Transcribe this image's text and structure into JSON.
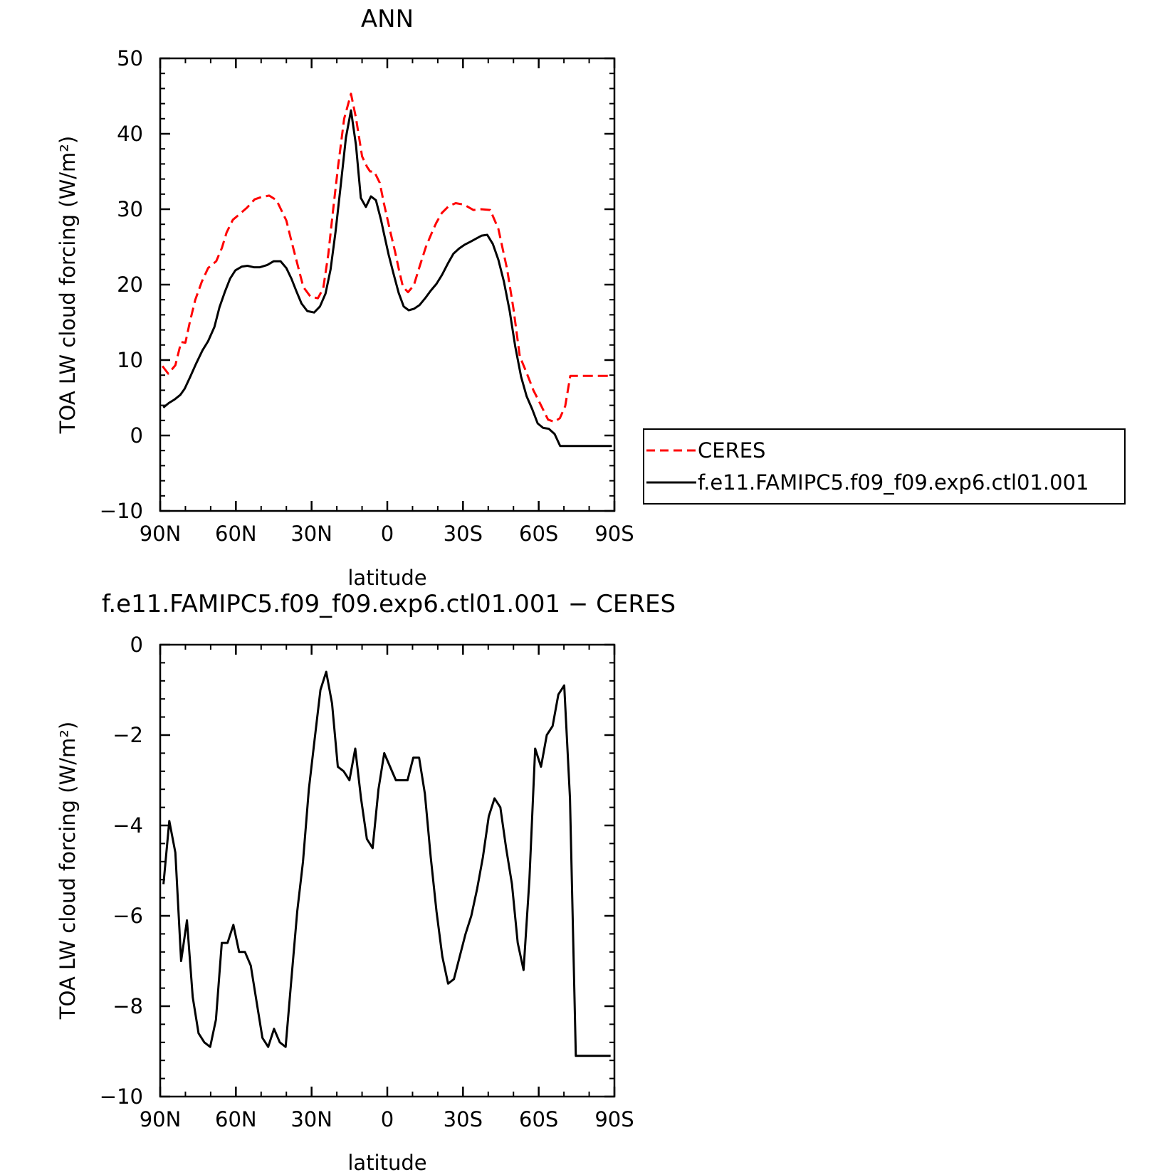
{
  "chart_data": [
    {
      "type": "line",
      "title": "ANN",
      "xlabel": "latitude",
      "ylabel": "TOA LW cloud forcing (W/m²)",
      "ylim": [
        -10,
        50
      ],
      "yticks": [
        -10,
        0,
        10,
        20,
        30,
        40,
        50
      ],
      "xlim": [
        90,
        -90
      ],
      "xticks": [
        90,
        60,
        30,
        0,
        -30,
        -60,
        -90
      ],
      "xtick_labels": [
        "90N",
        "60N",
        "30N",
        "0",
        "30S",
        "60S",
        "90S"
      ],
      "legend_position": "right",
      "series": [
        {
          "name": "CERES",
          "color": "#ff0000",
          "dash": "dashed",
          "x": [
            89.1,
            86.8,
            84.0,
            81.7,
            80.0,
            78.2,
            76.1,
            73.5,
            71.0,
            67.8,
            65.5,
            63.7,
            61.2,
            59.4,
            55.6,
            52.6,
            50.0,
            46.8,
            43.9,
            40.0,
            38.0,
            35.7,
            33.3,
            30.4,
            27.5,
            25.4,
            23.4,
            21.6,
            19.5,
            17.1,
            14.4,
            12.4,
            10.0,
            8.0,
            6.8,
            5.2,
            3.0,
            1.3,
            -1.4,
            -3.0,
            -4.6,
            -6.2,
            -8.2,
            -10.5,
            -12.9,
            -15.3,
            -17.8,
            -19.4,
            -21.6,
            -24.3,
            -27.1,
            -30.4,
            -34.1,
            -37.2,
            -40.8,
            -44.0,
            -47.5,
            -50.0,
            -52.5,
            -55.2,
            -57.9,
            -60.0,
            -63.7,
            -66.2,
            -68.4,
            -70.5,
            -72.5,
            -74.5,
            -77.2,
            -80.0,
            -82.0,
            -84.5,
            -86.2,
            -87.8,
            -89.2
          ],
          "y": [
            9.2,
            8.2,
            9.3,
            12.4,
            12.3,
            15.1,
            18.0,
            20.4,
            22.2,
            23.1,
            24.9,
            26.9,
            28.6,
            29.1,
            30.2,
            31.3,
            31.6,
            31.8,
            31.2,
            28.5,
            25.8,
            22.8,
            19.7,
            18.4,
            18.2,
            19.5,
            24.0,
            29.5,
            35.7,
            42.0,
            45.3,
            42.1,
            37.0,
            35.6,
            35.0,
            35.0,
            33.5,
            30.7,
            26.7,
            24.5,
            22.0,
            19.7,
            19.0,
            19.9,
            22.5,
            25.0,
            27.0,
            28.2,
            29.5,
            30.4,
            30.8,
            30.6,
            29.9,
            30.0,
            29.9,
            27.4,
            22.0,
            16.8,
            10.5,
            8.3,
            6.0,
            4.6,
            2.1,
            1.8,
            2.3,
            3.9,
            7.9,
            7.9,
            7.9,
            7.9,
            7.9,
            7.9,
            7.9,
            7.9,
            7.9
          ]
        },
        {
          "name": "f.e11.FAMIPC5.f09_f09.exp6.ctl01.001",
          "color": "#000000",
          "dash": "solid",
          "x": [
            88.8,
            86.6,
            84.2,
            82.0,
            80.3,
            78.2,
            75.8,
            73.2,
            71.0,
            68.5,
            66.5,
            64.4,
            62.3,
            60.2,
            57.6,
            55.4,
            52.9,
            50.5,
            47.6,
            45.0,
            42.3,
            40.0,
            38.0,
            36.0,
            34.0,
            31.7,
            29.0,
            26.7,
            24.5,
            22.5,
            20.5,
            18.5,
            16.4,
            14.4,
            12.4,
            10.5,
            8.5,
            6.5,
            4.5,
            2.5,
            1.2,
            -0.5,
            -2.5,
            -4.5,
            -6.5,
            -8.5,
            -10.6,
            -12.8,
            -15.0,
            -17.2,
            -19.5,
            -21.7,
            -24.0,
            -26.2,
            -28.5,
            -30.7,
            -33.0,
            -35.2,
            -37.4,
            -39.6,
            -41.8,
            -44.0,
            -46.2,
            -48.5,
            -50.7,
            -53.0,
            -55.2,
            -57.4,
            -59.6,
            -61.8,
            -64.0,
            -66.3,
            -68.5,
            -70.7,
            -72.8,
            -75.0,
            -77.2,
            -79.4,
            -81.6,
            -83.8,
            -86.0,
            -88.0,
            -89.0
          ],
          "y": [
            3.7,
            4.3,
            4.8,
            5.4,
            6.2,
            7.7,
            9.5,
            11.3,
            12.5,
            14.4,
            17.0,
            19.0,
            20.8,
            21.9,
            22.4,
            22.5,
            22.3,
            22.3,
            22.6,
            23.1,
            23.1,
            22.2,
            20.8,
            19.1,
            17.5,
            16.5,
            16.3,
            17.1,
            18.8,
            22.0,
            27.0,
            33.0,
            39.5,
            43.1,
            38.5,
            31.5,
            30.3,
            31.7,
            31.2,
            28.6,
            26.6,
            24.0,
            21.4,
            18.9,
            17.1,
            16.6,
            16.8,
            17.3,
            18.2,
            19.2,
            20.1,
            21.3,
            22.8,
            24.1,
            24.8,
            25.3,
            25.7,
            26.1,
            26.5,
            26.6,
            25.4,
            23.3,
            20.4,
            16.5,
            11.8,
            7.8,
            5.2,
            3.5,
            1.6,
            1.0,
            0.9,
            0.2,
            -1.4,
            -1.4,
            -1.4,
            -1.4,
            -1.4,
            -1.4,
            -1.4,
            -1.4,
            -1.4,
            -1.4,
            -1.4
          ]
        }
      ]
    },
    {
      "type": "line",
      "title": "f.e11.FAMIPC5.f09_f09.exp6.ctl01.001 − CERES",
      "xlabel": "latitude",
      "ylabel": "TOA LW cloud forcing (W/m²)",
      "ylim": [
        -10,
        0
      ],
      "yticks": [
        -10,
        -8,
        -6,
        -4,
        -2,
        0
      ],
      "ytick_labels": [
        "−10",
        "−8",
        "−6",
        "−4",
        "−2",
        "0"
      ],
      "xlim": [
        90,
        -90
      ],
      "xticks": [
        90,
        60,
        30,
        0,
        -30,
        -60,
        -90
      ],
      "xtick_labels": [
        "90N",
        "60N",
        "30N",
        "0",
        "30S",
        "60S",
        "90S"
      ],
      "series": [
        {
          "color": "#000000",
          "dash": "solid",
          "x": [
            88.7,
            86.4,
            84.0,
            81.7,
            79.4,
            77.1,
            74.8,
            72.5,
            70.2,
            67.9,
            65.6,
            63.3,
            61.0,
            58.7,
            56.4,
            54.1,
            51.8,
            49.5,
            47.2,
            44.9,
            42.6,
            40.3,
            38.0,
            35.7,
            33.4,
            31.1,
            28.8,
            26.5,
            24.2,
            21.9,
            19.6,
            17.3,
            15.0,
            12.7,
            10.4,
            8.1,
            5.8,
            3.5,
            1.2,
            -1.1,
            -3.4,
            -5.7,
            -8.0,
            -10.3,
            -12.6,
            -14.9,
            -17.2,
            -19.5,
            -21.8,
            -24.1,
            -26.4,
            -28.7,
            -31.0,
            -33.3,
            -35.6,
            -37.9,
            -40.2,
            -42.5,
            -44.8,
            -47.1,
            -49.4,
            -51.7,
            -54.0,
            -56.3,
            -58.6,
            -60.9,
            -63.2,
            -65.5,
            -67.8,
            -70.1,
            -72.4,
            -74.7,
            -77.0,
            -79.3,
            -81.6,
            -83.9,
            -86.2,
            -88.5
          ],
          "y": [
            -5.3,
            -3.9,
            -4.6,
            -7.0,
            -6.1,
            -7.8,
            -8.6,
            -8.8,
            -8.9,
            -8.3,
            -6.6,
            -6.6,
            -6.2,
            -6.8,
            -6.8,
            -7.1,
            -7.9,
            -8.7,
            -8.9,
            -8.5,
            -8.8,
            -8.9,
            -7.4,
            -5.9,
            -4.8,
            -3.2,
            -2.1,
            -1.0,
            -0.6,
            -1.3,
            -2.7,
            -2.8,
            -3.0,
            -2.3,
            -3.4,
            -4.3,
            -4.5,
            -3.2,
            -2.4,
            -2.7,
            -3.0,
            -3.0,
            -3.0,
            -2.5,
            -2.5,
            -3.3,
            -4.7,
            -5.9,
            -6.9,
            -7.5,
            -7.4,
            -6.9,
            -6.4,
            -6.0,
            -5.4,
            -4.7,
            -3.8,
            -3.4,
            -3.6,
            -4.5,
            -5.3,
            -6.6,
            -7.2,
            -5.2,
            -2.3,
            -2.7,
            -2.0,
            -1.8,
            -1.1,
            -0.9,
            -3.4,
            -9.1,
            -9.1,
            -9.1,
            -9.1,
            -9.1,
            -9.1,
            -9.1
          ]
        }
      ]
    }
  ]
}
